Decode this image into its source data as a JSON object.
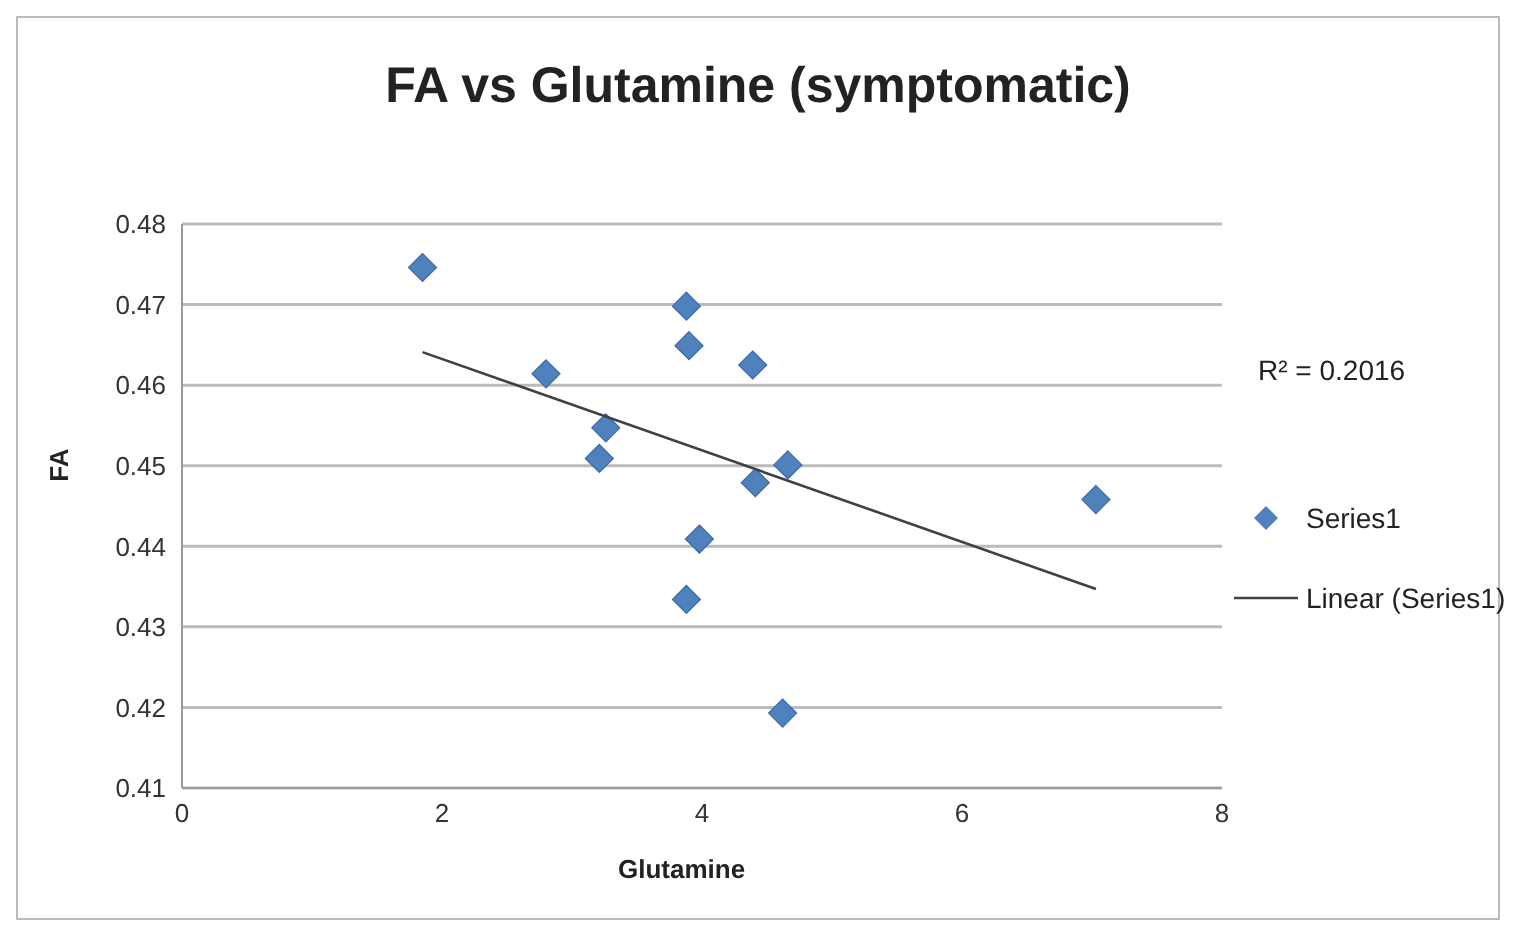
{
  "chart_data": {
    "type": "scatter",
    "title": "FA vs Glutamine (symptomatic)",
    "xlabel": "Glutamine",
    "ylabel": "FA",
    "xlim": [
      0,
      8
    ],
    "xticks": [
      0,
      2,
      4,
      6,
      8
    ],
    "ylim": [
      0.41,
      0.48
    ],
    "yticks": [
      0.41,
      0.42,
      0.43,
      0.44,
      0.45,
      0.46,
      0.47,
      0.48
    ],
    "grid": "y",
    "legend": "right",
    "annotations": [
      "R² = 0.2016"
    ],
    "series": [
      {
        "name": "Series1",
        "marker": "diamond",
        "color": "#4f81bd",
        "x": [
          1.85,
          2.8,
          3.26,
          3.21,
          3.88,
          3.9,
          4.39,
          4.41,
          3.98,
          3.88,
          4.66,
          4.62,
          7.03
        ],
        "values": [
          0.4746,
          0.4614,
          0.4547,
          0.4509,
          0.4698,
          0.4649,
          0.4625,
          0.4479,
          0.4409,
          0.4334,
          0.4501,
          0.4193,
          0.4458
        ]
      },
      {
        "name": "Linear (Series1)",
        "type": "line",
        "marker": "none",
        "color": "#404040",
        "x": [
          1.85,
          7.03
        ],
        "values": [
          0.4641,
          0.4347
        ]
      }
    ]
  }
}
